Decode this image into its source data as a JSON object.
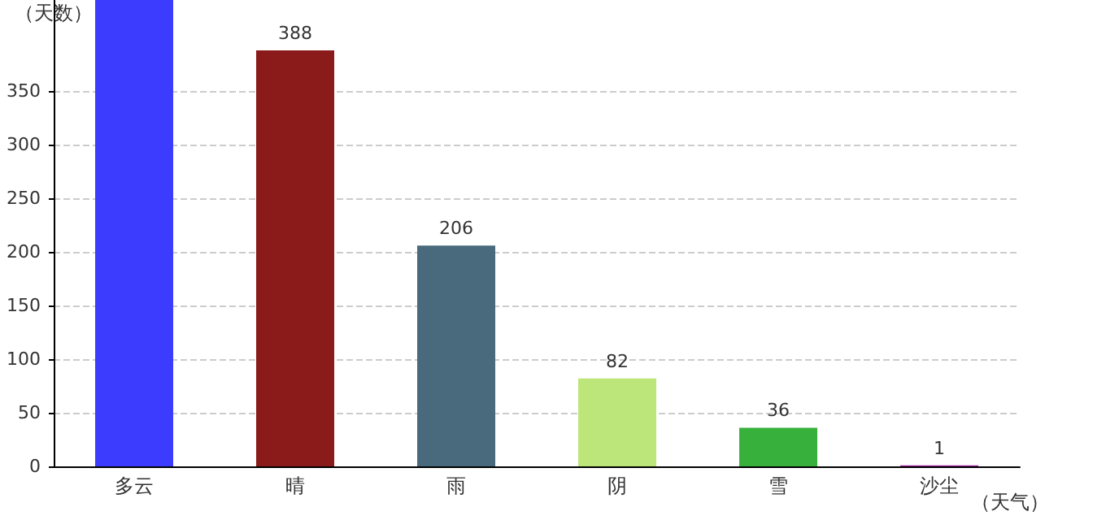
{
  "chart_data": {
    "type": "bar",
    "ylabel": "（天数）",
    "xlabel": "（天气）",
    "categories": [
      "多云",
      "晴",
      "雨",
      "阴",
      "雪",
      "沙尘"
    ],
    "values": [
      435,
      388,
      206,
      82,
      36,
      1
    ],
    "colors": [
      "#3c3cff",
      "#8b1a1a",
      "#486a7c",
      "#bde67a",
      "#38b03c",
      "#a020a0"
    ],
    "value_labels": [
      null,
      "388",
      "206",
      "82",
      "36",
      "1"
    ],
    "ylim": [
      0,
      435
    ],
    "yticks": [
      0,
      50,
      100,
      150,
      200,
      250,
      300,
      350
    ],
    "grid": "y"
  }
}
